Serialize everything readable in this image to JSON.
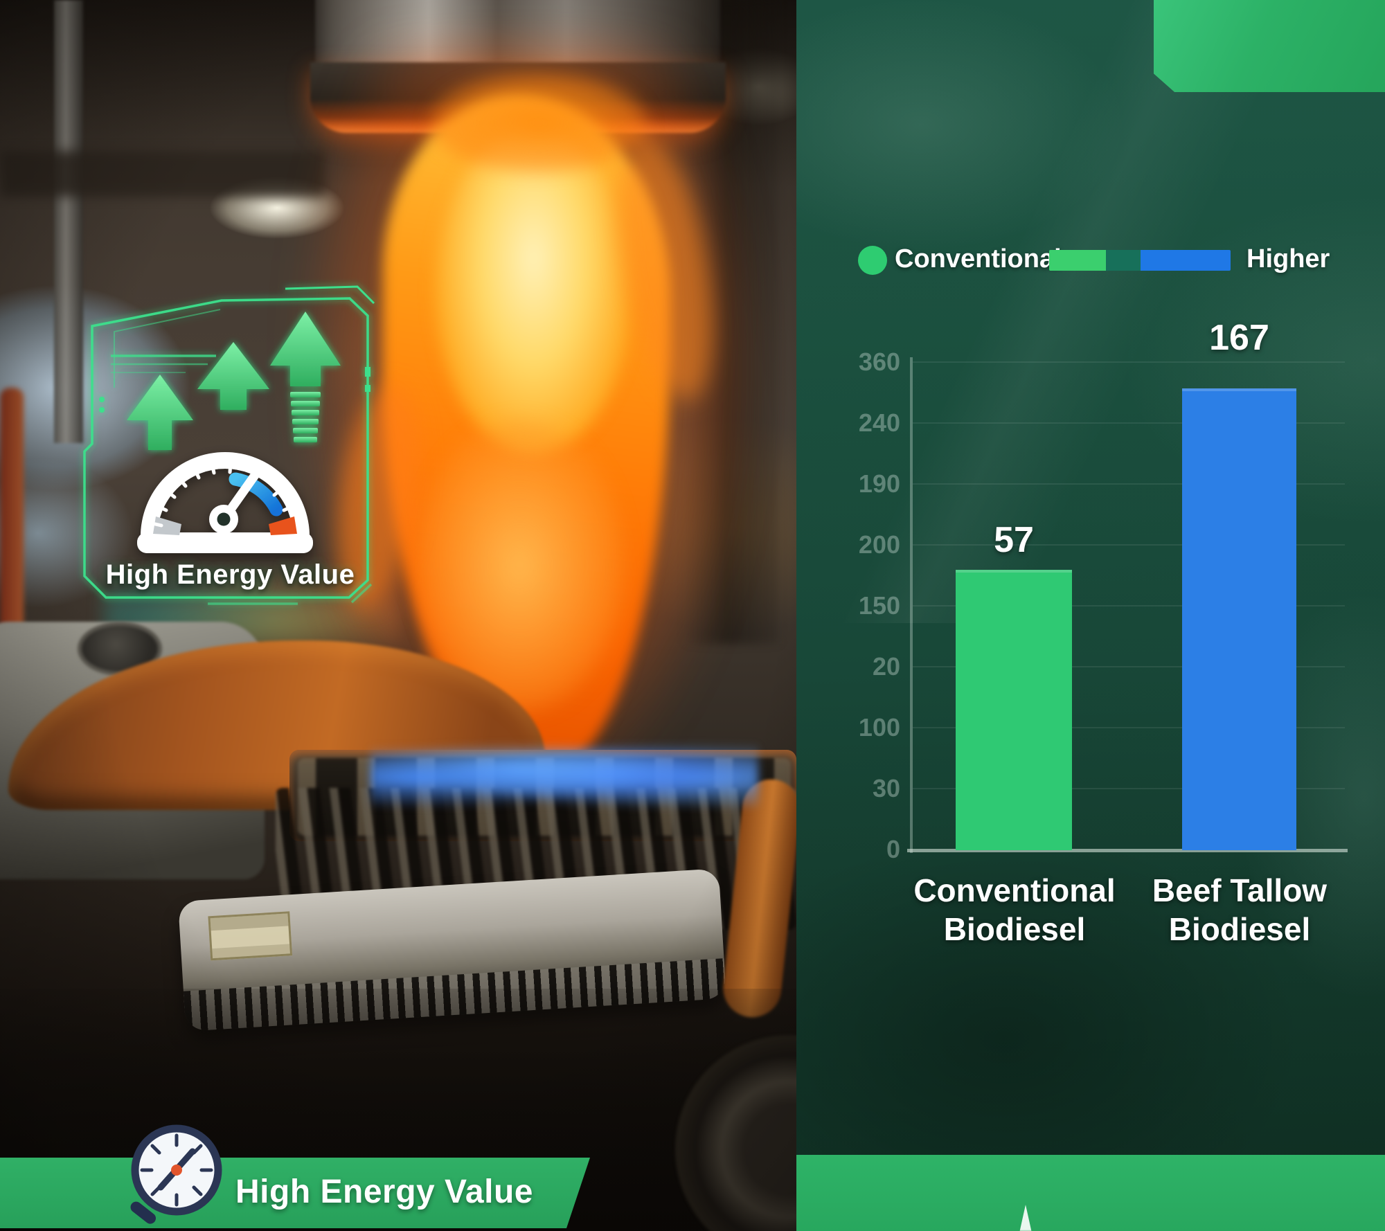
{
  "left_panel": {
    "hud_title": "High Energy Value",
    "banner_title": "High Energy Value"
  },
  "chart_data": {
    "type": "bar",
    "categories": [
      "Conventional Biodiesel",
      "Beef Tallow Biodiesel"
    ],
    "category_lines": [
      [
        "Conventional",
        "Biodiesel"
      ],
      [
        "Beef Tallow",
        "Biodiesel"
      ]
    ],
    "values": [
      57,
      167
    ],
    "value_labels": [
      "57",
      "167"
    ],
    "bar_colors": [
      "#2fc973",
      "#2c7fe6"
    ],
    "bar_height_fractions": [
      0.575,
      0.948
    ],
    "y_axis": {
      "tick_labels": [
        "360",
        "240",
        "190",
        "200",
        "150",
        "20",
        "100",
        "30",
        "0"
      ],
      "range_shown": [
        0,
        360
      ]
    },
    "legend": {
      "dot_color": "#2ecc71",
      "label": "Conventional",
      "segments": [
        "#3bcf6e",
        "#17705a",
        "#1f78e6"
      ],
      "end_label": "Higher"
    },
    "grid": true,
    "legend_position": "top"
  },
  "colors": {
    "accent_green": "#2fb269",
    "accent_blue": "#2c7fe6",
    "panel_dark_green": "#174536",
    "hud_neon_green": "#3de08c"
  }
}
